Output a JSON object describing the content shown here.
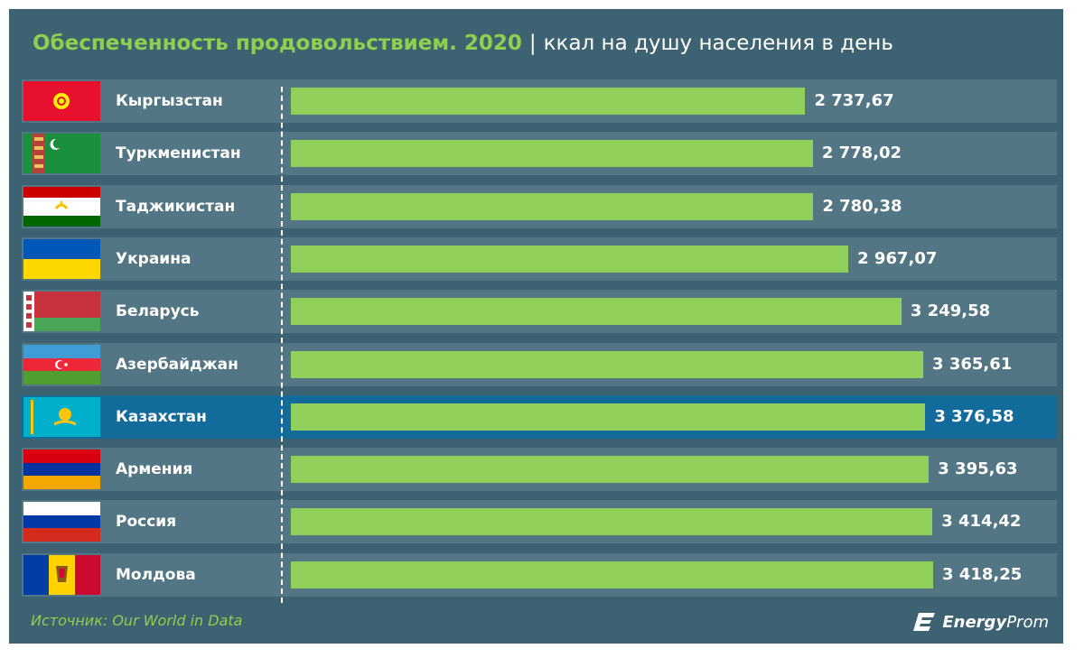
{
  "header": {
    "title_main": "Обеспеченность продовольствием. 2020",
    "separator": "|",
    "title_unit": "ккал на душу населения в день"
  },
  "footer": {
    "source": "Источник: Our World in Data",
    "brand_energy": "Energy",
    "brand_prom": "Prom"
  },
  "colors": {
    "background": "#3d6272",
    "row": "#537684",
    "highlight_row": "#136b9c",
    "bar": "#90cf59",
    "title_accent": "#8fcf4f"
  },
  "chart_data": {
    "type": "bar",
    "orientation": "horizontal",
    "title": "Обеспеченность продовольствием. 2020",
    "subtitle": "ккал на душу населения в день",
    "highlighted_category": "Казахстан",
    "grid": false,
    "categories": [
      "Кыргызстан",
      "Туркменистан",
      "Таджикистан",
      "Украина",
      "Беларусь",
      "Азербайджан",
      "Казахстан",
      "Армения",
      "Россия",
      "Молдова"
    ],
    "flags": [
      "kyrgyzstan-flag",
      "turkmenistan-flag",
      "tajikistan-flag",
      "ukraine-flag",
      "belarus-flag",
      "azerbaijan-flag",
      "kazakhstan-flag",
      "armenia-flag",
      "russia-flag",
      "moldova-flag"
    ],
    "values": [
      2737.67,
      2778.02,
      2780.38,
      2967.07,
      3249.58,
      3365.61,
      3376.58,
      3395.63,
      3414.42,
      3418.25
    ],
    "value_labels": [
      "2 737,67",
      "2 778,02",
      "2 780,38",
      "2 967,07",
      "3 249,58",
      "3 365,61",
      "3 376,58",
      "3 395,63",
      "3 414,42",
      "3 418,25"
    ]
  }
}
